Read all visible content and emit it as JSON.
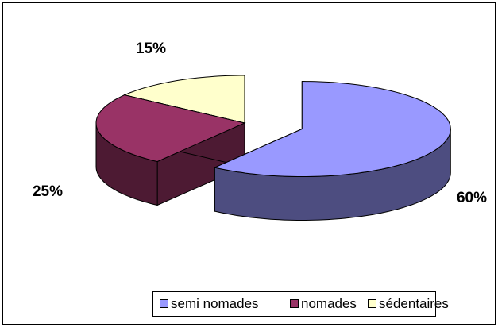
{
  "chart_data": {
    "type": "pie3d",
    "categories": [
      "semi nomades",
      "nomades",
      "sédentaires"
    ],
    "values": [
      60,
      25,
      15
    ],
    "value_labels": [
      "60%",
      "25%",
      "15%"
    ],
    "colors": [
      "#9999ff",
      "#993366",
      "#ffffcc"
    ],
    "legend": "bottom"
  }
}
